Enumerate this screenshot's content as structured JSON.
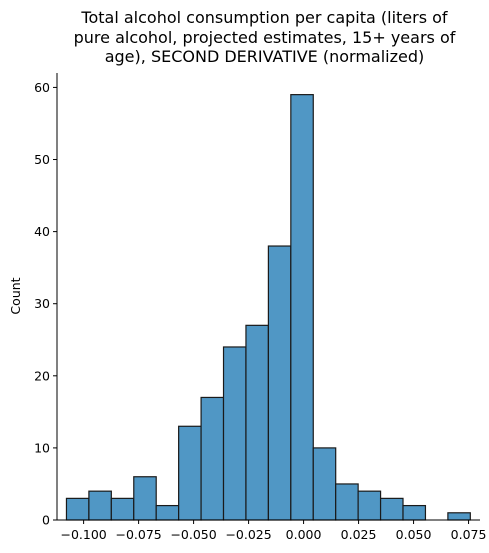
{
  "chart_data": {
    "type": "bar",
    "title_lines": [
      "Total alcohol consumption per capita (liters of",
      "pure alcohol, projected estimates, 15+ years of",
      "age), SECOND DERIVATIVE (normalized)"
    ],
    "xlabel": "",
    "ylabel": "Count",
    "bin_edges": [
      -0.1078,
      -0.0976,
      -0.0874,
      -0.0772,
      -0.067,
      -0.0568,
      -0.0466,
      -0.0364,
      -0.0262,
      -0.016,
      -0.0058,
      0.0044,
      0.0146,
      0.0248,
      0.035,
      0.0452,
      0.0554,
      0.0656,
      0.0758
    ],
    "counts": [
      3,
      4,
      3,
      6,
      2,
      13,
      17,
      24,
      27,
      38,
      59,
      10,
      5,
      4,
      3,
      2,
      0,
      1
    ],
    "xlim": [
      -0.1121,
      0.0802
    ],
    "ylim": [
      0,
      62
    ],
    "x_ticks": [
      "-0.100",
      "-0.075",
      "-0.050",
      "-0.025",
      "0.000",
      "0.025",
      "0.050",
      "0.075"
    ],
    "x_tick_values": [
      -0.1,
      -0.075,
      -0.05,
      -0.025,
      0.0,
      0.025,
      0.05,
      0.075
    ],
    "y_ticks": [
      0,
      10,
      20,
      30,
      40,
      50,
      60
    ],
    "bar_color": "#5097c5",
    "edge_color": "#1a1a1a",
    "grid": false
  }
}
